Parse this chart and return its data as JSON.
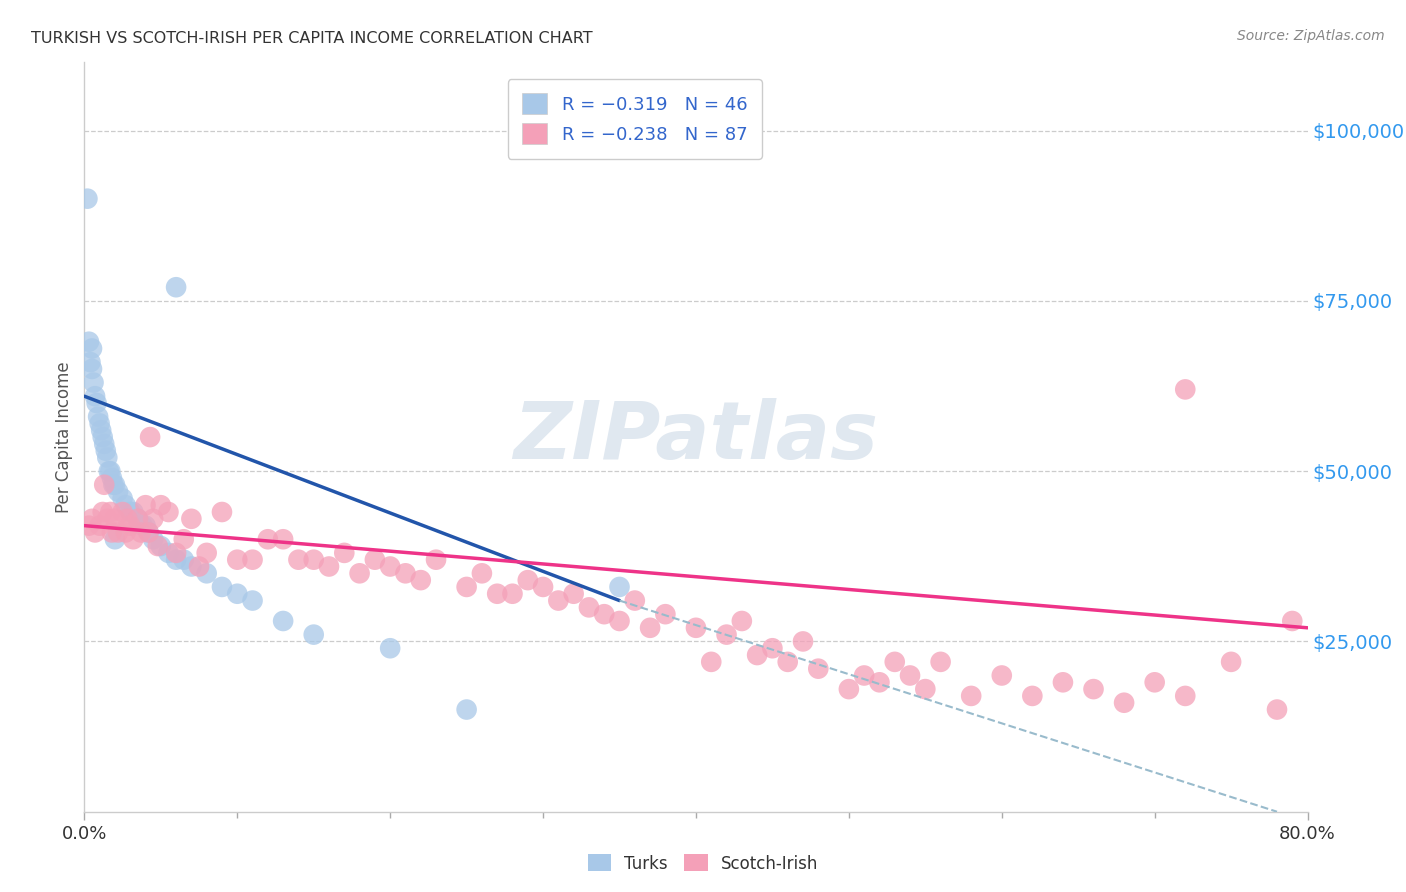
{
  "title": "TURKISH VS SCOTCH-IRISH PER CAPITA INCOME CORRELATION CHART",
  "source": "Source: ZipAtlas.com",
  "ylabel": "Per Capita Income",
  "watermark": "ZIPatlas",
  "xlim": [
    0.0,
    0.8
  ],
  "ylim": [
    0,
    110000
  ],
  "yticks": [
    0,
    25000,
    50000,
    75000,
    100000
  ],
  "ytick_labels": [
    "",
    "$25,000",
    "$50,000",
    "$75,000",
    "$100,000"
  ],
  "xtick_positions": [
    0.0,
    0.8
  ],
  "xtick_labels": [
    "0.0%",
    "80.0%"
  ],
  "minor_xtick_positions": [
    0.1,
    0.2,
    0.3,
    0.4,
    0.5,
    0.6,
    0.7
  ],
  "turks_color": "#a8c8e8",
  "scotch_color": "#f4a0b8",
  "turks_line_color": "#2255aa",
  "scotch_line_color": "#ee3388",
  "dashed_line_color": "#99bbcc",
  "title_color": "#333333",
  "right_tick_color": "#3399ee",
  "background_color": "#ffffff",
  "turks_line_x0": 0.0,
  "turks_line_y0": 61000,
  "turks_line_x1": 0.35,
  "turks_line_y1": 31000,
  "scotch_line_x0": 0.0,
  "scotch_line_y0": 42000,
  "scotch_line_x1": 0.8,
  "scotch_line_y1": 27000,
  "dash_line_x0": 0.35,
  "dash_line_y0": 31000,
  "dash_line_x1": 0.78,
  "dash_line_y1": 0,
  "turks_x": [
    0.002,
    0.003,
    0.004,
    0.005,
    0.006,
    0.007,
    0.008,
    0.009,
    0.01,
    0.011,
    0.012,
    0.013,
    0.014,
    0.015,
    0.016,
    0.017,
    0.018,
    0.019,
    0.02,
    0.022,
    0.025,
    0.027,
    0.03,
    0.032,
    0.035,
    0.038,
    0.04,
    0.042,
    0.045,
    0.05,
    0.055,
    0.06,
    0.065,
    0.07,
    0.08,
    0.09,
    0.1,
    0.11,
    0.13,
    0.15,
    0.2,
    0.25,
    0.35,
    0.06,
    0.02,
    0.005
  ],
  "turks_y": [
    90000,
    69000,
    66000,
    65000,
    63000,
    61000,
    60000,
    58000,
    57000,
    56000,
    55000,
    54000,
    53000,
    52000,
    50000,
    50000,
    49000,
    48000,
    48000,
    47000,
    46000,
    45000,
    44000,
    44000,
    43000,
    42000,
    42000,
    41000,
    40000,
    39000,
    38000,
    37000,
    37000,
    36000,
    35000,
    33000,
    32000,
    31000,
    28000,
    26000,
    24000,
    15000,
    33000,
    77000,
    40000,
    68000
  ],
  "scotch_x": [
    0.003,
    0.005,
    0.007,
    0.01,
    0.012,
    0.013,
    0.015,
    0.017,
    0.018,
    0.02,
    0.022,
    0.025,
    0.027,
    0.028,
    0.03,
    0.032,
    0.035,
    0.037,
    0.04,
    0.042,
    0.043,
    0.045,
    0.048,
    0.05,
    0.055,
    0.06,
    0.065,
    0.07,
    0.075,
    0.08,
    0.09,
    0.1,
    0.11,
    0.12,
    0.13,
    0.14,
    0.15,
    0.16,
    0.17,
    0.18,
    0.19,
    0.2,
    0.21,
    0.22,
    0.23,
    0.25,
    0.26,
    0.27,
    0.28,
    0.29,
    0.3,
    0.31,
    0.32,
    0.33,
    0.34,
    0.35,
    0.36,
    0.37,
    0.38,
    0.4,
    0.41,
    0.42,
    0.43,
    0.44,
    0.45,
    0.46,
    0.47,
    0.48,
    0.5,
    0.51,
    0.52,
    0.53,
    0.54,
    0.55,
    0.56,
    0.58,
    0.6,
    0.62,
    0.64,
    0.66,
    0.68,
    0.7,
    0.72,
    0.75,
    0.78,
    0.79,
    0.72
  ],
  "scotch_y": [
    42000,
    43000,
    41000,
    42000,
    44000,
    48000,
    43000,
    44000,
    41000,
    43000,
    41000,
    44000,
    41000,
    43000,
    42000,
    40000,
    43000,
    41000,
    45000,
    41000,
    55000,
    43000,
    39000,
    45000,
    44000,
    38000,
    40000,
    43000,
    36000,
    38000,
    44000,
    37000,
    37000,
    40000,
    40000,
    37000,
    37000,
    36000,
    38000,
    35000,
    37000,
    36000,
    35000,
    34000,
    37000,
    33000,
    35000,
    32000,
    32000,
    34000,
    33000,
    31000,
    32000,
    30000,
    29000,
    28000,
    31000,
    27000,
    29000,
    27000,
    22000,
    26000,
    28000,
    23000,
    24000,
    22000,
    25000,
    21000,
    18000,
    20000,
    19000,
    22000,
    20000,
    18000,
    22000,
    17000,
    20000,
    17000,
    19000,
    18000,
    16000,
    19000,
    17000,
    22000,
    15000,
    28000,
    62000
  ]
}
